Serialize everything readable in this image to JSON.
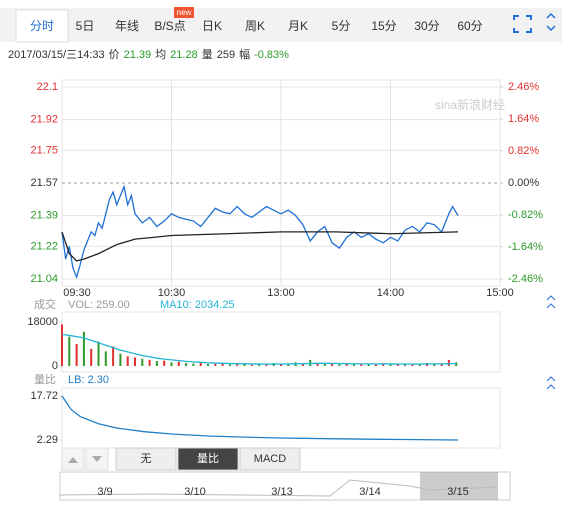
{
  "tabs": [
    "分时",
    "5日",
    "年线",
    "B/S点",
    "日K",
    "周K",
    "月K",
    "5分",
    "15分",
    "30分",
    "60分"
  ],
  "badge": "new",
  "info": {
    "datetime": "2017/03/15/三14:33",
    "price_label": "价",
    "price": "21.39",
    "avg_label": "均",
    "avg": "21.28",
    "vol_label": "量",
    "vol": "259",
    "chg_label": "幅",
    "chg": "-0.83%"
  },
  "watermark": "sina新浪财经",
  "chart_data": [
    {
      "type": "line",
      "xlim": [
        0,
        240
      ],
      "xticks": [
        {
          "value": 0,
          "label": "09:30"
        },
        {
          "value": 60,
          "label": "10:30"
        },
        {
          "value": 120,
          "label": "13:00"
        },
        {
          "value": 180,
          "label": "14:00"
        },
        {
          "value": 240,
          "label": "15:00"
        }
      ],
      "ylim": [
        21.04,
        22.1
      ],
      "yticks": [
        21.04,
        21.22,
        21.39,
        21.57,
        21.75,
        21.92,
        22.1
      ],
      "y2lim": [
        -2.46,
        2.46
      ],
      "y2ticks": [
        {
          "value": -2.46,
          "label": "-2.46%"
        },
        {
          "value": -1.64,
          "label": "-1.64%"
        },
        {
          "value": -0.82,
          "label": "-0.82%"
        },
        {
          "value": 0,
          "label": "0.00%"
        },
        {
          "value": 0.82,
          "label": "0.82%"
        },
        {
          "value": 1.64,
          "label": "1.64%"
        },
        {
          "value": 2.46,
          "label": "2.46%"
        }
      ],
      "grid": true,
      "series": [
        {
          "color": "#1f6fd6",
          "x": [
            0,
            2,
            4,
            6,
            8,
            10,
            12,
            14,
            16,
            18,
            20,
            22,
            24,
            26,
            28,
            30,
            32,
            34,
            36,
            38,
            40,
            44,
            48,
            52,
            56,
            60,
            64,
            68,
            72,
            76,
            80,
            84,
            88,
            92,
            96,
            100,
            104,
            108,
            112,
            116,
            120,
            124,
            128,
            132,
            136,
            140,
            144,
            148,
            152,
            156,
            160,
            164,
            168,
            172,
            176,
            180,
            184,
            188,
            192,
            196,
            200,
            204,
            208,
            212,
            214,
            217
          ],
          "values": [
            21.3,
            21.15,
            21.22,
            21.1,
            21.05,
            21.12,
            21.2,
            21.25,
            21.3,
            21.28,
            21.35,
            21.32,
            21.4,
            21.48,
            21.52,
            21.45,
            21.5,
            21.55,
            21.45,
            21.5,
            21.4,
            21.35,
            21.38,
            21.33,
            21.36,
            21.4,
            21.38,
            21.37,
            21.36,
            21.33,
            21.38,
            21.43,
            21.41,
            21.4,
            21.44,
            21.4,
            21.38,
            21.41,
            21.44,
            21.42,
            21.4,
            21.42,
            21.39,
            21.34,
            21.25,
            21.3,
            21.33,
            21.24,
            21.21,
            21.27,
            21.3,
            21.27,
            21.29,
            21.26,
            21.24,
            21.27,
            21.25,
            21.31,
            21.33,
            21.3,
            21.35,
            21.34,
            21.3,
            21.4,
            21.44,
            21.39
          ]
        },
        {
          "color": "#222222",
          "x": [
            0,
            4,
            8,
            12,
            20,
            30,
            40,
            50,
            60,
            90,
            120,
            150,
            180,
            217
          ],
          "values": [
            21.3,
            21.18,
            21.14,
            21.15,
            21.18,
            21.23,
            21.26,
            21.27,
            21.28,
            21.29,
            21.3,
            21.3,
            21.29,
            21.3
          ]
        }
      ]
    },
    {
      "type": "bar",
      "label": "成交",
      "vol_text": "VOL: 259.00",
      "ma_text": "MA10: 2034.25",
      "ylim": [
        0,
        18000
      ],
      "yticks": [
        0,
        18000
      ],
      "x": [
        0,
        4,
        8,
        12,
        16,
        20,
        24,
        28,
        32,
        36,
        40,
        44,
        48,
        52,
        56,
        60,
        64,
        68,
        72,
        76,
        80,
        84,
        88,
        92,
        96,
        100,
        104,
        108,
        112,
        116,
        120,
        124,
        128,
        132,
        136,
        140,
        144,
        148,
        152,
        156,
        160,
        164,
        168,
        172,
        176,
        180,
        184,
        188,
        192,
        196,
        200,
        204,
        208,
        212,
        216
      ],
      "values": [
        17000,
        12000,
        9000,
        14000,
        7000,
        10000,
        6000,
        8000,
        5000,
        4000,
        3500,
        3000,
        2500,
        2000,
        2200,
        1500,
        1800,
        1200,
        1000,
        1500,
        800,
        900,
        1000,
        700,
        600,
        800,
        500,
        700,
        600,
        1200,
        900,
        800,
        1500,
        1000,
        2500,
        1200,
        800,
        1000,
        700,
        900,
        600,
        800,
        700,
        900,
        1100,
        600,
        800,
        1000,
        700,
        900,
        1200,
        1000,
        800,
        2500,
        1500
      ],
      "colors": [
        "#e03030",
        "#2a9a2a",
        "#e03030",
        "#2a9a2a",
        "#e03030",
        "#2a9a2a",
        "#2a9a2a",
        "#e03030",
        "#2a9a2a",
        "#e03030",
        "#e03030",
        "#2a9a2a",
        "#e03030",
        "#2a9a2a",
        "#e03030",
        "#2a9a2a",
        "#e03030",
        "#2a9a2a",
        "#2a9a2a",
        "#e03030",
        "#2a9a2a",
        "#e03030",
        "#e03030",
        "#2a9a2a",
        "#e03030",
        "#2a9a2a",
        "#e03030",
        "#2a9a2a",
        "#e03030",
        "#2a9a2a",
        "#e03030",
        "#2a9a2a",
        "#2a9a2a",
        "#e03030",
        "#2a9a2a",
        "#e03030",
        "#2a9a2a",
        "#e03030",
        "#2a9a2a",
        "#e03030",
        "#2a9a2a",
        "#e03030",
        "#2a9a2a",
        "#e03030",
        "#e03030",
        "#2a9a2a",
        "#e03030",
        "#2a9a2a",
        "#e03030",
        "#2a9a2a",
        "#e03030",
        "#2a9a2a",
        "#e03030",
        "#e03030",
        "#2a9a2a"
      ],
      "ma": {
        "color": "#22b5d6",
        "values": [
          13000,
          12500,
          12000,
          11500,
          10500,
          9500,
          8500,
          7500,
          6500,
          5800,
          5000,
          4300,
          3800,
          3200,
          2800,
          2500,
          2200,
          1900,
          1700,
          1500,
          1300,
          1200,
          1100,
          1000,
          950,
          900,
          850,
          800,
          780,
          800,
          820,
          850,
          900,
          950,
          1000,
          1100,
          1100,
          1050,
          1000,
          950,
          900,
          880,
          860,
          850,
          850,
          840,
          830,
          820,
          820,
          830,
          850,
          870,
          880,
          950,
          1000
        ]
      }
    },
    {
      "type": "line",
      "label": "量比",
      "lb_text": "LB: 2.30",
      "ylim": [
        2.29,
        17.72
      ],
      "yticks": [
        2.29,
        17.72
      ],
      "series": [
        {
          "color": "#1f7fc8",
          "x": [
            0,
            5,
            10,
            20,
            30,
            45,
            60,
            80,
            100,
            120,
            150,
            180,
            217
          ],
          "values": [
            17.72,
            13,
            10.5,
            8,
            6.5,
            5.2,
            4.4,
            3.7,
            3.3,
            3.0,
            2.7,
            2.5,
            2.3
          ]
        }
      ]
    }
  ],
  "buttons": [
    "无",
    "量比",
    "MACD"
  ],
  "nav_dates": [
    "3/9",
    "3/10",
    "3/13",
    "3/14",
    "3/15"
  ]
}
